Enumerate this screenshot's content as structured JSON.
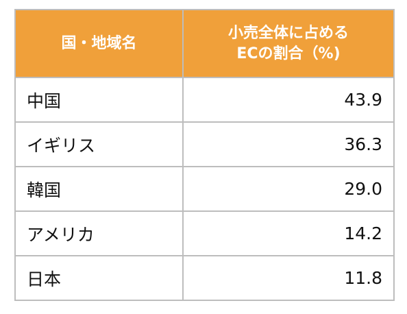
{
  "chart_data": {
    "type": "table",
    "columns": [
      "国・地域名",
      "小売全体に占めるECの割合（%)"
    ],
    "header_lines": {
      "col1": [
        "国・地域名"
      ],
      "col2": [
        "小売全体に占める",
        "ECの割合（%)"
      ]
    },
    "rows": [
      {
        "name": "中国",
        "value": "43.9"
      },
      {
        "name": "イギリス",
        "value": "36.3"
      },
      {
        "name": "韓国",
        "value": "29.0"
      },
      {
        "name": "アメリカ",
        "value": "14.2"
      },
      {
        "name": "日本",
        "value": "11.8"
      }
    ],
    "header_color": "#f0a03a",
    "header_text_color": "#ffffff",
    "border_color": "#bdbdbd"
  }
}
